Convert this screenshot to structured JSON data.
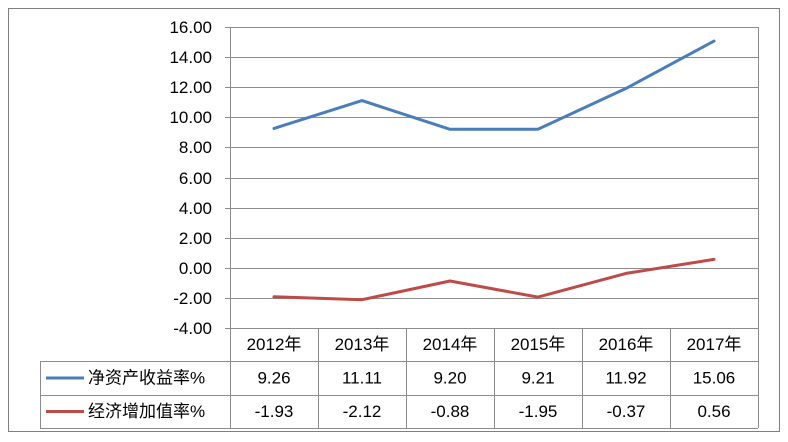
{
  "chart_data": {
    "type": "line",
    "categories": [
      "2012年",
      "2013年",
      "2014年",
      "2015年",
      "2016年",
      "2017年"
    ],
    "series": [
      {
        "name": "净资产收益率%",
        "values": [
          9.26,
          11.11,
          9.2,
          9.21,
          11.92,
          15.06
        ],
        "table_values": [
          "9.26",
          "11.11",
          "9.20",
          "9.21",
          "11.92",
          "15.06"
        ],
        "color": "#4a7ebb"
      },
      {
        "name": "经济增加值率%",
        "values": [
          -1.93,
          -2.12,
          -0.88,
          -1.95,
          -0.37,
          0.56
        ],
        "table_values": [
          "-1.93",
          "-2.12",
          "-0.88",
          "-1.95",
          "-0.37",
          "0.56"
        ],
        "color": "#be4b48"
      }
    ],
    "ylim": [
      -4,
      16
    ],
    "ytick_labels": [
      "16.00",
      "14.00",
      "12.00",
      "10.00",
      "8.00",
      "6.00",
      "4.00",
      "2.00",
      "0.00",
      "-2.00",
      "-4.00"
    ],
    "grid": true,
    "legend": "data-table"
  }
}
